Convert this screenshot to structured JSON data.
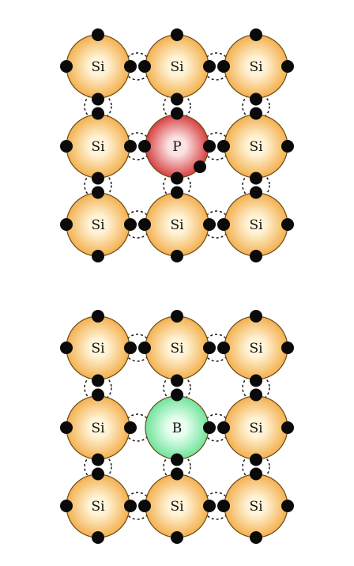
{
  "diagrams": [
    {
      "id": "n-type",
      "dopant": {
        "label": "P",
        "color_light": "#fbe3e3",
        "color_dark": "#d22a2a"
      },
      "host_label": "Si",
      "extra_electron": true,
      "grid": [
        [
          "Si",
          "Si",
          "Si"
        ],
        [
          "Si",
          "P",
          "Si"
        ],
        [
          "Si",
          "Si",
          "Si"
        ]
      ]
    },
    {
      "id": "p-type",
      "dopant": {
        "label": "B",
        "color_light": "#eafff2",
        "color_dark": "#5fe08f"
      },
      "host_label": "Si",
      "missing_electron": true,
      "grid": [
        [
          "Si",
          "Si",
          "Si"
        ],
        [
          "Si",
          "B",
          "Si"
        ],
        [
          "Si",
          "Si",
          "Si"
        ]
      ]
    }
  ],
  "colors": {
    "silicon_light": "#fff4d8",
    "silicon_dark": "#f2a73c",
    "atom_stroke": "#6b4a18",
    "electron": "#0a0a0a"
  }
}
